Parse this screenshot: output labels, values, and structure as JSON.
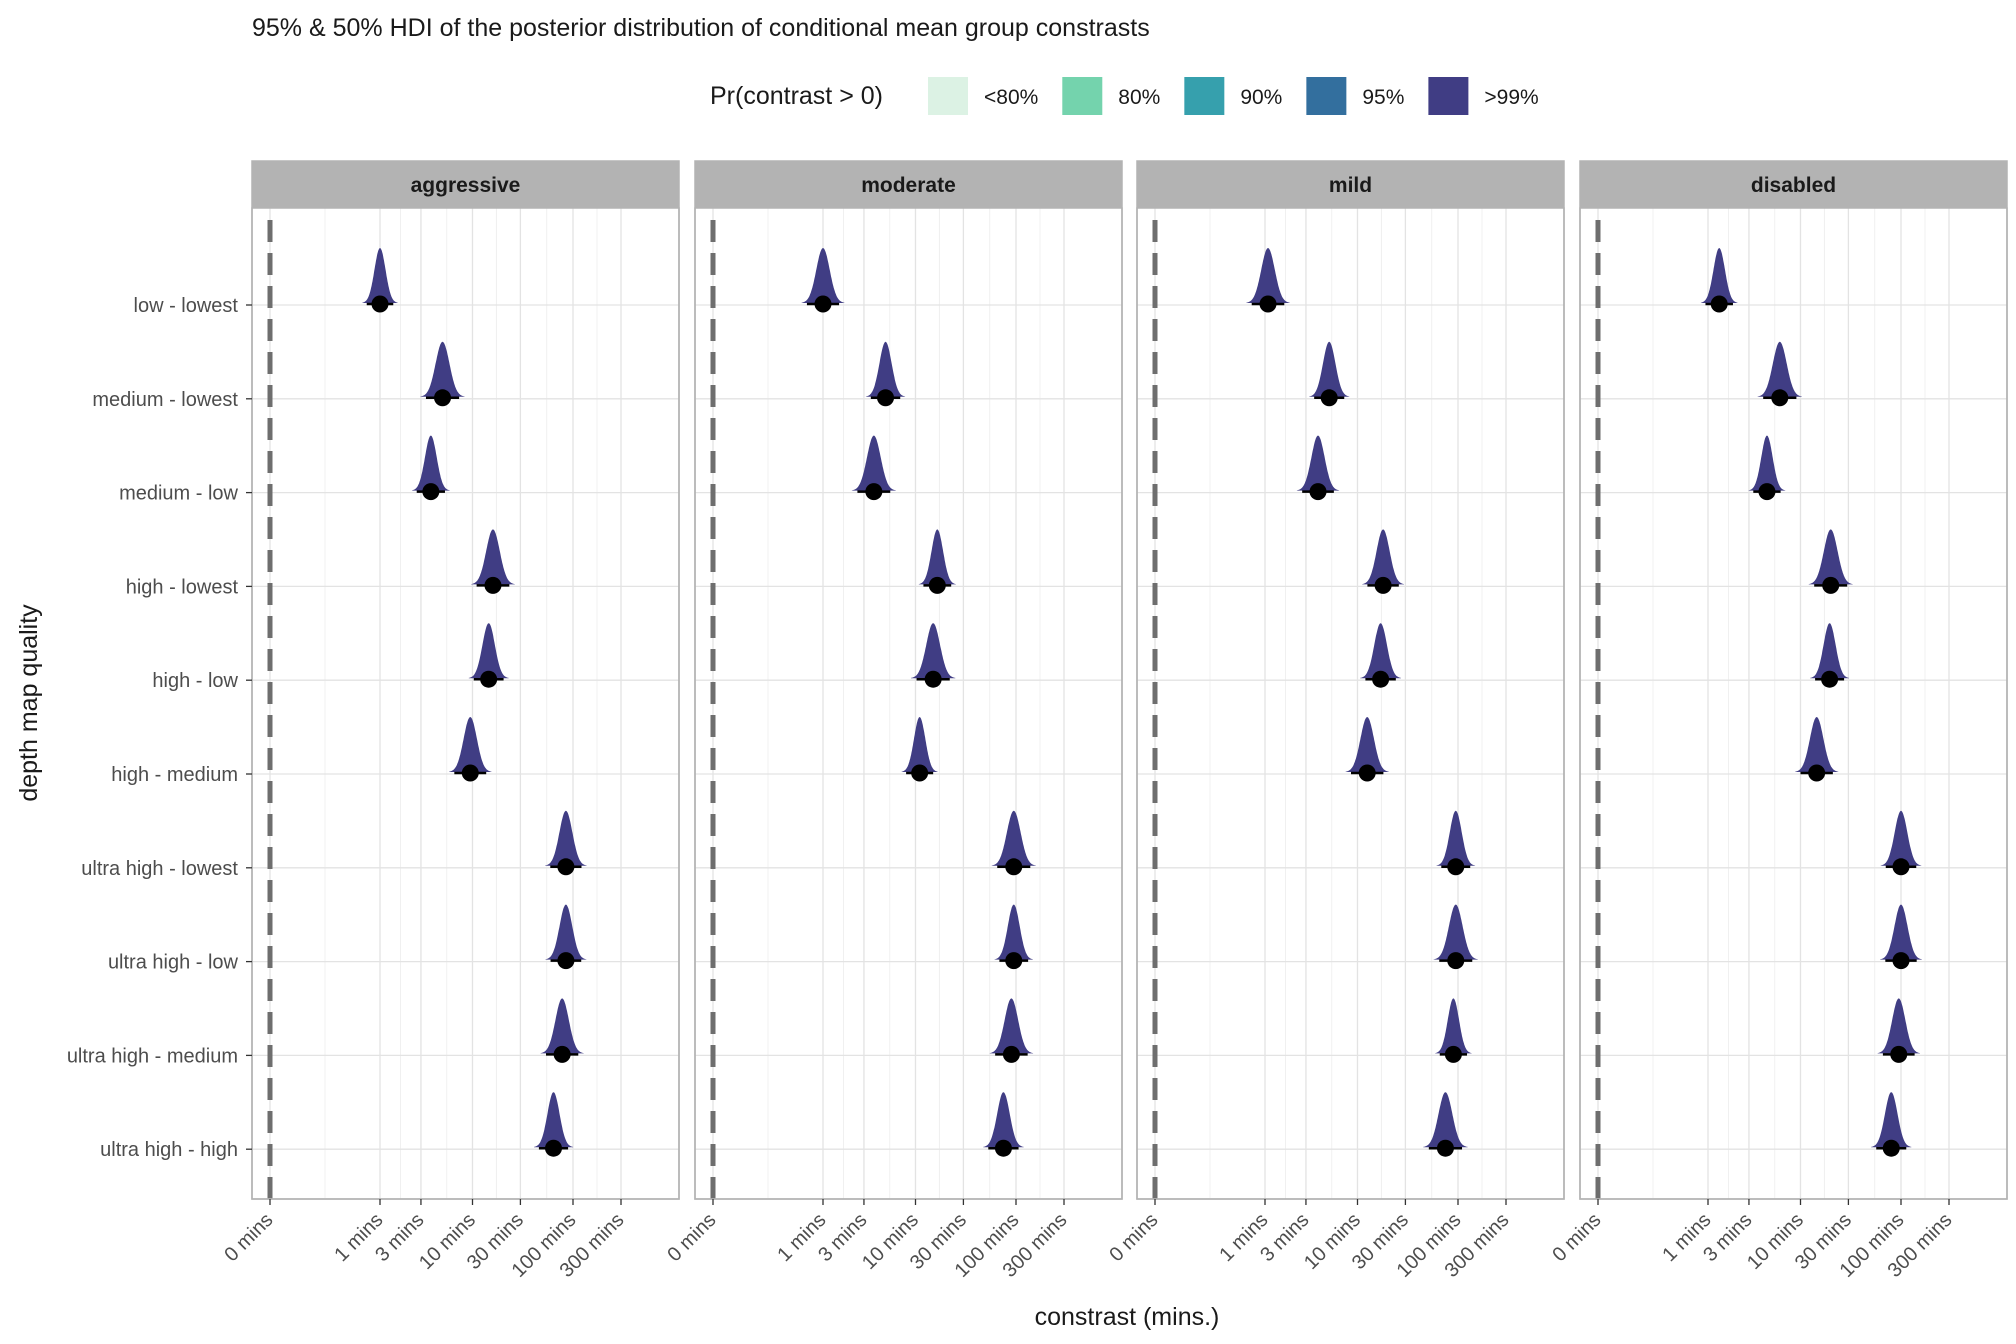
{
  "chart_data": {
    "type": "halfeye",
    "title": "95% & 50% HDI of the posterior distribution of conditional mean group constrasts",
    "xlabel": "constrast (mins.)",
    "ylabel": "depth map quality",
    "x_scale": "pseudo-log",
    "x_ticks": [
      0,
      1,
      3,
      10,
      30,
      100,
      300
    ],
    "x_tick_labels": [
      "0 mins",
      "1 mins",
      "3 mins",
      "10 mins",
      "30 mins",
      "100 mins",
      "300 mins"
    ],
    "legend": {
      "title": "Pr(contrast > 0)",
      "position": "top",
      "items": [
        {
          "label": "<80%",
          "color": "#dcf2e4"
        },
        {
          "label": "80%",
          "color": "#74d3ad"
        },
        {
          "label": "90%",
          "color": "#36a0ad"
        },
        {
          "label": "95%",
          "color": "#336f9e"
        },
        {
          "label": ">99%",
          "color": "#403d84"
        }
      ]
    },
    "reference_line": {
      "x": 0,
      "style": "dashed"
    },
    "categories": [
      "low - lowest",
      "medium - lowest",
      "medium - low",
      "high - lowest",
      "high - low",
      "high - medium",
      "ultra high - lowest",
      "ultra high - low",
      "ultra high - medium",
      "ultra high - high"
    ],
    "panels": [
      {
        "name": "aggressive",
        "values": [
          1.0,
          5.0,
          3.8,
          16.0,
          14.5,
          9.5,
          85.0,
          85.0,
          78.0,
          64.0
        ]
      },
      {
        "name": "moderate",
        "values": [
          1.0,
          5.0,
          3.8,
          16.5,
          15.0,
          11.0,
          95.0,
          95.0,
          90.0,
          75.0
        ]
      },
      {
        "name": "mild",
        "values": [
          1.1,
          5.2,
          4.0,
          18.0,
          17.0,
          12.5,
          95.0,
          95.0,
          90.0,
          75.0
        ]
      },
      {
        "name": "disabled",
        "values": [
          1.4,
          6.2,
          4.6,
          20.0,
          19.5,
          14.5,
          100.0,
          100.0,
          95.0,
          80.0
        ]
      }
    ],
    "series_color": ">99%",
    "grid": true
  }
}
